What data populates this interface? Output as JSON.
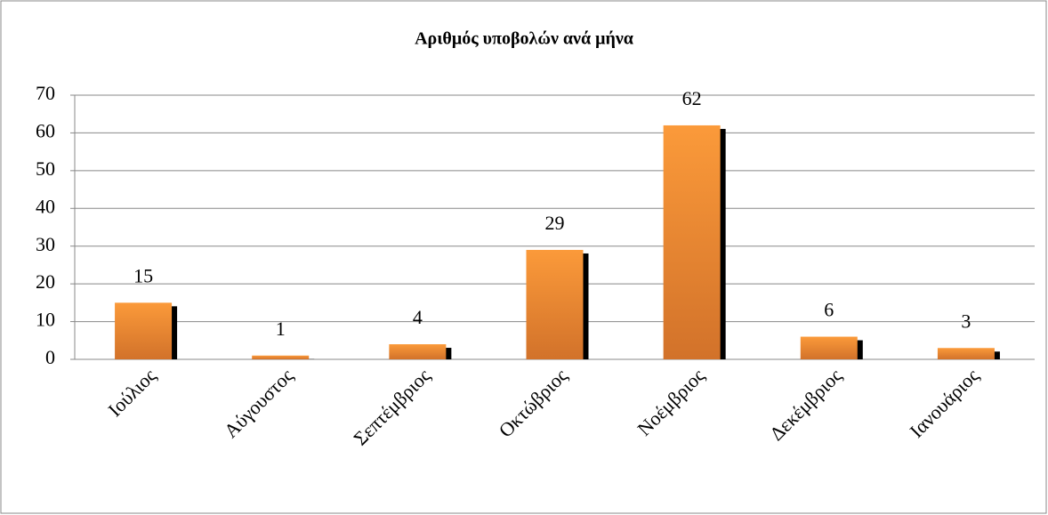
{
  "chart_data": {
    "type": "bar",
    "title": "Αριθμός υποβολών ανά μήνα",
    "categories": [
      "Ιούλιος",
      "Αύγουστος",
      "Σεπτέμβριος",
      "Οκτώβριος",
      "Νοέμβριος",
      "Δεκέμβριος",
      "Ιανουάριος"
    ],
    "values": [
      15,
      1,
      4,
      29,
      62,
      6,
      3
    ],
    "color": "#f7923a",
    "ylim": [
      0,
      70
    ],
    "yticks": [
      0,
      10,
      20,
      30,
      40,
      50,
      60,
      70
    ],
    "grid": true
  }
}
